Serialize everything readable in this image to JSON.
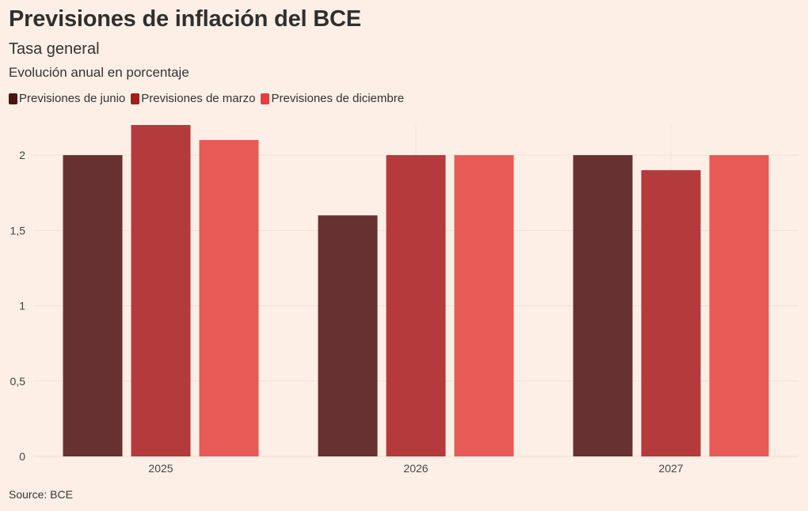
{
  "header": {
    "title": "Previsiones de inflación del BCE",
    "subtitle": "Tasa general",
    "subtitle2": "Evolución anual en porcentaje"
  },
  "legend": {
    "items": [
      {
        "label": "Previsiones de junio",
        "color": "#4a1414"
      },
      {
        "label": "Previsiones de marzo",
        "color": "#a51c1c"
      },
      {
        "label": "Previsiones de diciembre",
        "color": "#e04040"
      }
    ]
  },
  "footer": {
    "source": "Source: BCE"
  },
  "chart_data": {
    "type": "bar",
    "title": "Previsiones de inflación del BCE",
    "subtitle": "Tasa general",
    "xlabel": "",
    "ylabel": "Evolución anual en porcentaje",
    "categories": [
      "2025",
      "2026",
      "2027"
    ],
    "series": [
      {
        "name": "Previsiones de junio",
        "values": [
          2.0,
          1.6,
          2.0
        ],
        "color": "#673131"
      },
      {
        "name": "Previsiones de marzo",
        "values": [
          2.2,
          2.0,
          1.9
        ],
        "color": "#b53a3b"
      },
      {
        "name": "Previsiones de diciembre",
        "values": [
          2.1,
          2.0,
          2.0
        ],
        "color": "#e85a56"
      }
    ],
    "ylim": [
      0,
      2.2
    ],
    "yticks": [
      0,
      0.5,
      1,
      1.5,
      2
    ],
    "ytick_labels": [
      "0",
      "0,5",
      "1",
      "1,5",
      "2"
    ],
    "grid": true,
    "legend_position": "top-left"
  }
}
